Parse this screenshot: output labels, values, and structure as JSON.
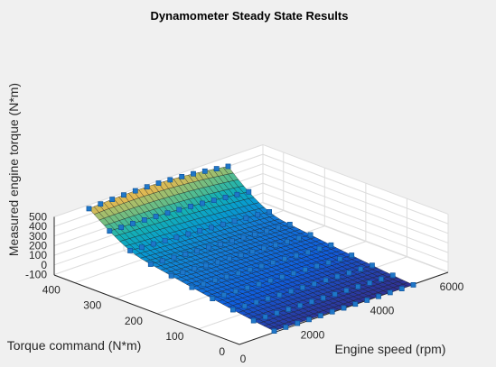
{
  "chart_data": {
    "type": "surface",
    "title": "Dynamometer Steady State Results",
    "xlabel": "Engine speed (rpm)",
    "ylabel": "Torque command (N*m)",
    "zlabel": "Measured engine torque (N*m)",
    "xlim": [
      0,
      6000
    ],
    "ylim": [
      0,
      450
    ],
    "zlim": [
      -120,
      520
    ],
    "xticks": [
      "0",
      "2000",
      "4000",
      "6000"
    ],
    "yticks": [
      "0",
      "100",
      "200",
      "300",
      "400"
    ],
    "zticks": [
      "-100",
      "0",
      "100",
      "200",
      "300",
      "400",
      "500"
    ],
    "grid": true,
    "colormap": "parula",
    "speed_range": [
      1000,
      5000
    ],
    "torque_cmd_range": [
      0,
      450
    ],
    "surface_samples": [
      {
        "speed": 1000,
        "torque_cmd": 0,
        "torque": -90
      },
      {
        "speed": 5000,
        "torque_cmd": 0,
        "torque": -110
      },
      {
        "speed": 1000,
        "torque_cmd": 350,
        "torque": 170
      },
      {
        "speed": 1000,
        "torque_cmd": 450,
        "torque": 460
      },
      {
        "speed": 3000,
        "torque_cmd": 450,
        "torque": 490
      },
      {
        "speed": 5000,
        "torque_cmd": 450,
        "torque": 400
      }
    ]
  }
}
